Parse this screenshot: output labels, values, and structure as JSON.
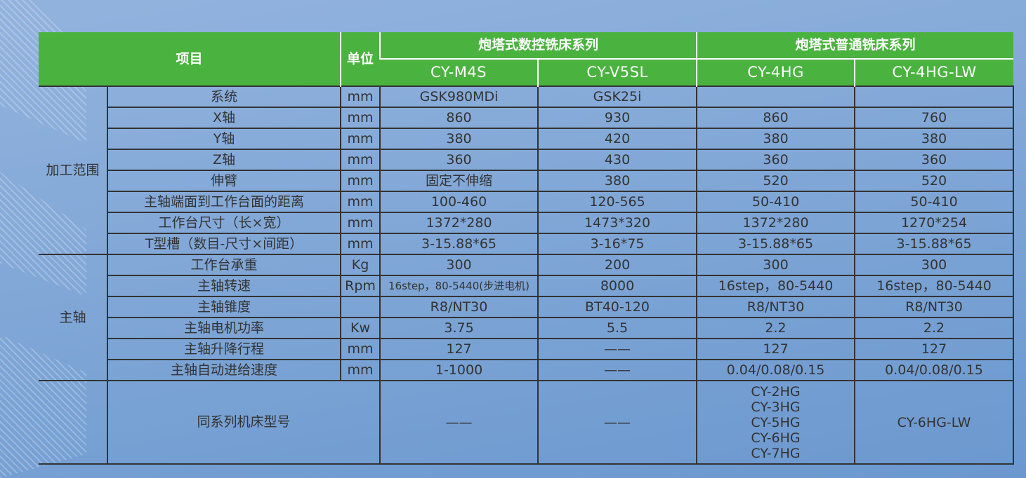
{
  "header": {
    "item": "项目",
    "unit": "单位",
    "group_cnc": "炮塔式数控铣床系列",
    "group_manual": "炮塔式普通铣床系列",
    "models": [
      "CY-M4S",
      "CY-V5SL",
      "CY-4HG",
      "CY-4HG-LW"
    ]
  },
  "groups": {
    "machining": "加工范围",
    "spindle": "主轴"
  },
  "rows": [
    {
      "item": "系统",
      "unit": "mm",
      "values": [
        "GSK980MDi",
        "GSK25i",
        "",
        ""
      ]
    },
    {
      "item": "X轴",
      "unit": "mm",
      "values": [
        "860",
        "930",
        "860",
        "760"
      ]
    },
    {
      "item": "Y轴",
      "unit": "mm",
      "values": [
        "380",
        "420",
        "380",
        "380"
      ]
    },
    {
      "item": "Z轴",
      "unit": "mm",
      "values": [
        "360",
        "430",
        "360",
        "360"
      ]
    },
    {
      "item": "伸臂",
      "unit": "mm",
      "values": [
        "固定不伸缩",
        "380",
        "520",
        "520"
      ]
    },
    {
      "item": "主轴端面到工作台面的距离",
      "unit": "mm",
      "values": [
        "100-460",
        "120-565",
        "50-410",
        "50-410"
      ]
    },
    {
      "item": "工作台尺寸（长×宽）",
      "unit": "mm",
      "values": [
        "1372*280",
        "1473*320",
        "1372*280",
        "1270*254"
      ]
    },
    {
      "item": "T型槽（数目-尺寸×间距）",
      "unit": "mm",
      "values": [
        "3-15.88*65",
        "3-16*75",
        "3-15.88*65",
        "3-15.88*65"
      ]
    },
    {
      "item": "工作台承重",
      "unit": "Kg",
      "values": [
        "300",
        "200",
        "300",
        "300"
      ]
    },
    {
      "item": "主轴转速",
      "unit": "Rpm",
      "values": [
        "16step，80-5440(步进电机)",
        "8000",
        "16step，80-5440",
        "16step，80-5440"
      ]
    },
    {
      "item": "主轴锥度",
      "unit": "",
      "values": [
        "R8/NT30",
        "BT40-120",
        "R8/NT30",
        "R8/NT30"
      ]
    },
    {
      "item": "主轴电机功率",
      "unit": "Kw",
      "values": [
        "3.75",
        "5.5",
        "2.2",
        "2.2"
      ]
    },
    {
      "item": "主轴升降行程",
      "unit": "mm",
      "values": [
        "127",
        "——",
        "127",
        "127"
      ]
    },
    {
      "item": "主轴自动进给速度",
      "unit": "mm",
      "values": [
        "1-1000",
        "——",
        "0.04/0.08/0.15",
        "0.04/0.08/0.15"
      ]
    }
  ],
  "series_row": {
    "item": "同系列机床型号",
    "values": [
      "——",
      "——",
      "CY-2HG\nCY-3HG\nCY-5HG\nCY-6HG\nCY-7HG",
      "CY-6HG-LW"
    ]
  },
  "colors": {
    "header_green": "#4ab33f",
    "background_blue": "#7fa6d6"
  }
}
